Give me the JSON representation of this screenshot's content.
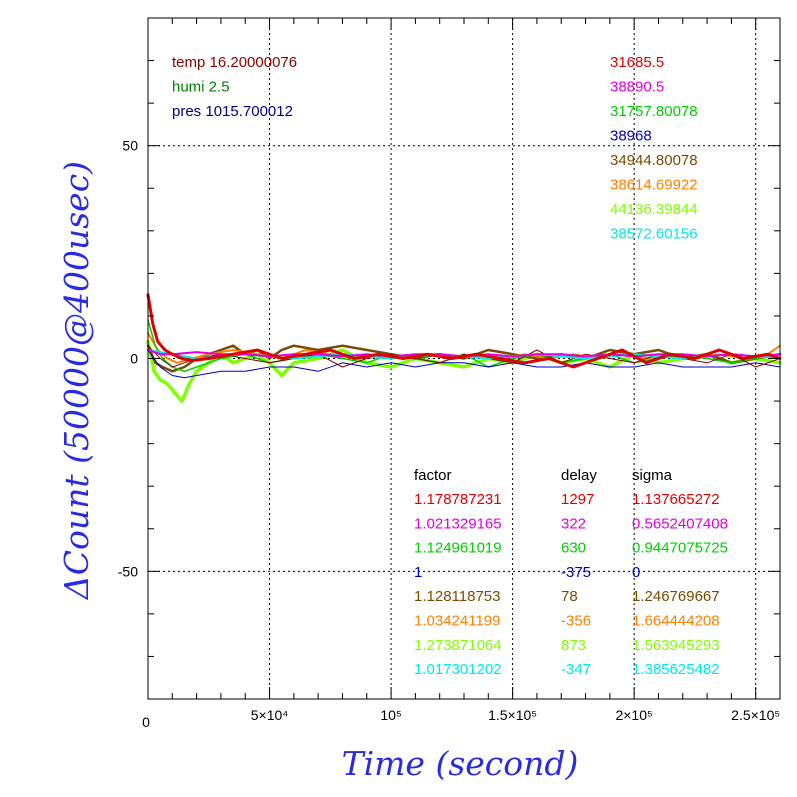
{
  "chart_data": {
    "type": "line",
    "xlabel": "Time (second)",
    "ylabel": "ΔCount (50000@400usec)",
    "xlim": [
      0,
      260000
    ],
    "ylim": [
      -80,
      80
    ],
    "grid": true,
    "x_ticks": [
      {
        "value": 0,
        "label": "0"
      },
      {
        "value": 50000,
        "label": "5×10⁴"
      },
      {
        "value": 100000,
        "label": "10⁵"
      },
      {
        "value": 150000,
        "label": "1.5×10⁵"
      },
      {
        "value": 200000,
        "label": "2×10⁵"
      },
      {
        "value": 250000,
        "label": "2.5×10⁵"
      }
    ],
    "y_ticks": [
      {
        "value": 50,
        "label": "50"
      },
      {
        "value": 0,
        "label": "0"
      },
      {
        "value": -50,
        "label": "-50"
      }
    ],
    "environment": [
      {
        "text": "temp 16.20000076",
        "color": "#8b0000"
      },
      {
        "text": "humi 2.5",
        "color": "#008000"
      },
      {
        "text": "pres 1015.700012",
        "color": "#000080"
      }
    ],
    "means": [
      {
        "text": "31685.5",
        "color": "#e00000"
      },
      {
        "text": "38890.5",
        "color": "#e000e0"
      },
      {
        "text": "31757.80078",
        "color": "#00d000"
      },
      {
        "text": "38968",
        "color": "#0000c0"
      },
      {
        "text": "34944.80078",
        "color": "#7a4a00"
      },
      {
        "text": "38614.69922",
        "color": "#ff8000"
      },
      {
        "text": "44136.39844",
        "color": "#80ff00"
      },
      {
        "text": "38572.60156",
        "color": "#00e8e8"
      }
    ],
    "table_headers": [
      "factor",
      "delay",
      "sigma"
    ],
    "table_rows": [
      {
        "factor": "1.178787231",
        "delay": "1297",
        "sigma": "1.137665272",
        "color": "#e00000"
      },
      {
        "factor": "1.021329165",
        "delay": "322",
        "sigma": "0.5652407408",
        "color": "#e000e0"
      },
      {
        "factor": "1.124961019",
        "delay": "630",
        "sigma": "0.9447075725",
        "color": "#00d000"
      },
      {
        "factor": "1",
        "delay": "-375",
        "sigma": "0",
        "color": "#0000c0"
      },
      {
        "factor": "1.128118753",
        "delay": "78",
        "sigma": "1.246769667",
        "color": "#7a4a00"
      },
      {
        "factor": "1.034241199",
        "delay": "-356",
        "sigma": "1.664444208",
        "color": "#ff8000"
      },
      {
        "factor": "1.273871064",
        "delay": "873",
        "sigma": "1.563945293",
        "color": "#80ff00"
      },
      {
        "factor": "1.017301202",
        "delay": "-347",
        "sigma": "1.385625482",
        "color": "#00e8e8"
      }
    ],
    "series": [
      {
        "color": "#80ff00",
        "width": 3.5,
        "x": [
          0,
          2500,
          5000,
          8000,
          11000,
          14000,
          17000,
          20000,
          25000,
          30000,
          35000,
          40000,
          45000,
          50000,
          55000,
          60000,
          70000,
          80000,
          90000,
          100000,
          110000,
          120000,
          130000,
          140000,
          150000,
          160000,
          170000,
          180000,
          190000,
          200000,
          210000,
          220000,
          230000,
          240000,
          250000,
          260000
        ],
        "y": [
          4,
          -3,
          -5,
          -6,
          -8,
          -10,
          -6,
          -3,
          -1,
          1,
          -1,
          0,
          1,
          -1,
          -4,
          -1,
          0,
          2,
          -1,
          -2,
          0,
          -1,
          -2,
          0,
          -1,
          1,
          -1,
          0,
          -2,
          1,
          -1,
          0,
          1,
          -1,
          0,
          -1
        ]
      },
      {
        "color": "#7a4a00",
        "width": 2.5,
        "x": [
          0,
          3000,
          6000,
          10000,
          15000,
          20000,
          25000,
          30000,
          35000,
          40000,
          45000,
          50000,
          55000,
          60000,
          70000,
          80000,
          90000,
          100000,
          110000,
          120000,
          130000,
          140000,
          150000,
          160000,
          170000,
          180000,
          190000,
          200000,
          210000,
          220000,
          230000,
          240000,
          250000,
          260000
        ],
        "y": [
          3,
          -1,
          -2,
          -3,
          -2,
          0,
          1,
          2,
          3,
          1,
          2,
          0,
          2,
          3,
          2,
          3,
          2,
          1,
          0,
          1,
          0,
          2,
          1,
          0,
          1,
          0,
          2,
          1,
          2,
          0,
          1,
          -1,
          0,
          1
        ]
      },
      {
        "color": "#ff8000",
        "width": 2,
        "x": [
          0,
          4000,
          8000,
          12000,
          18000,
          25000,
          35000,
          45000,
          55000,
          65000,
          75000,
          85000,
          95000,
          105000,
          115000,
          125000,
          135000,
          145000,
          155000,
          165000,
          175000,
          185000,
          195000,
          205000,
          215000,
          225000,
          235000,
          245000,
          255000,
          260000
        ],
        "y": [
          6,
          2,
          0,
          -1,
          0,
          1,
          2,
          1,
          0,
          2,
          1,
          0,
          1,
          0,
          1,
          0,
          1,
          0,
          1,
          0,
          1,
          0,
          1,
          0,
          1,
          0,
          1,
          0,
          1,
          3
        ]
      },
      {
        "color": "#00d000",
        "width": 1.5,
        "x": [
          0,
          3000,
          6000,
          10000,
          15000,
          20000,
          30000,
          40000,
          50000,
          60000,
          70000,
          80000,
          90000,
          100000,
          110000,
          120000,
          130000,
          140000,
          150000,
          160000,
          170000,
          180000,
          190000,
          200000,
          210000,
          220000,
          230000,
          240000,
          250000,
          260000
        ],
        "y": [
          9,
          3,
          0,
          -2,
          -3,
          -2,
          0,
          1,
          -1,
          0,
          1,
          0,
          -1,
          1,
          0,
          -1,
          1,
          -2,
          0,
          1,
          -1,
          0,
          1,
          -1,
          0,
          1,
          0,
          -1,
          0,
          1
        ]
      },
      {
        "color": "#0000c0",
        "width": 1,
        "x": [
          0,
          5000,
          10000,
          15000,
          20000,
          30000,
          40000,
          50000,
          60000,
          70000,
          80000,
          90000,
          100000,
          110000,
          120000,
          130000,
          140000,
          150000,
          160000,
          170000,
          180000,
          190000,
          200000,
          210000,
          220000,
          230000,
          240000,
          250000,
          260000
        ],
        "y": [
          2,
          -2,
          -4,
          -4.5,
          -4,
          -3,
          -3,
          -2,
          -2,
          -3,
          -1,
          -2,
          -1,
          -2,
          -1,
          -1,
          -2,
          -1,
          -2,
          -2,
          -1,
          -2,
          -2,
          -1,
          -2,
          -2,
          -2,
          -1,
          -2
        ]
      },
      {
        "color": "#8b0000",
        "width": 1,
        "x": [
          0,
          5000,
          10000,
          15000,
          20000,
          30000,
          40000,
          50000,
          60000,
          70000,
          80000,
          90000,
          100000,
          110000,
          120000,
          130000,
          140000,
          150000,
          160000,
          170000,
          180000,
          190000,
          200000,
          210000,
          220000,
          230000,
          240000,
          250000,
          260000
        ],
        "y": [
          3,
          0,
          -2,
          -1,
          0,
          1,
          0,
          -1,
          0,
          1,
          -2,
          0,
          1,
          0,
          -1,
          1,
          0,
          -1,
          2,
          -1,
          1,
          0,
          -1,
          1,
          0,
          -1,
          1,
          -2,
          0
        ]
      },
      {
        "color": "#00e8e8",
        "width": 2,
        "x": [
          0,
          10000,
          20000,
          40000,
          60000,
          80000,
          100000,
          120000,
          140000,
          160000,
          180000,
          200000,
          220000,
          240000,
          260000
        ],
        "y": [
          2,
          1,
          0,
          1,
          0,
          1,
          0,
          1,
          0,
          1,
          0,
          1,
          0,
          1,
          0
        ]
      },
      {
        "color": "#e000e0",
        "width": 2,
        "x": [
          0,
          5000,
          10000,
          20000,
          30000,
          40000,
          50000,
          60000,
          70000,
          80000,
          90000,
          100000,
          110000,
          120000,
          130000,
          140000,
          150000,
          160000,
          170000,
          180000,
          190000,
          200000,
          210000,
          220000,
          230000,
          240000,
          250000,
          260000
        ],
        "y": [
          2,
          1,
          1,
          1.5,
          1,
          1,
          0.5,
          1,
          1,
          0.5,
          1,
          0.5,
          1,
          1,
          0.5,
          1,
          0.5,
          1,
          1,
          0.5,
          1,
          0.5,
          1,
          1,
          0.5,
          1,
          0.5,
          1
        ]
      },
      {
        "color": "#e00000",
        "width": 3,
        "x": [
          0,
          2000,
          4000,
          7000,
          10000,
          14000,
          18000,
          25000,
          35000,
          45000,
          55000,
          65000,
          75000,
          85000,
          95000,
          105000,
          115000,
          125000,
          135000,
          145000,
          155000,
          165000,
          175000,
          185000,
          195000,
          205000,
          215000,
          225000,
          235000,
          245000,
          255000,
          260000
        ],
        "y": [
          15,
          8,
          4,
          2,
          1,
          0,
          -0.5,
          0,
          1,
          2,
          0,
          1,
          2,
          0,
          1,
          0,
          1,
          0,
          1,
          0,
          -1,
          0,
          -2,
          0,
          2,
          -1,
          1,
          0,
          2,
          0,
          1,
          0
        ]
      }
    ]
  }
}
